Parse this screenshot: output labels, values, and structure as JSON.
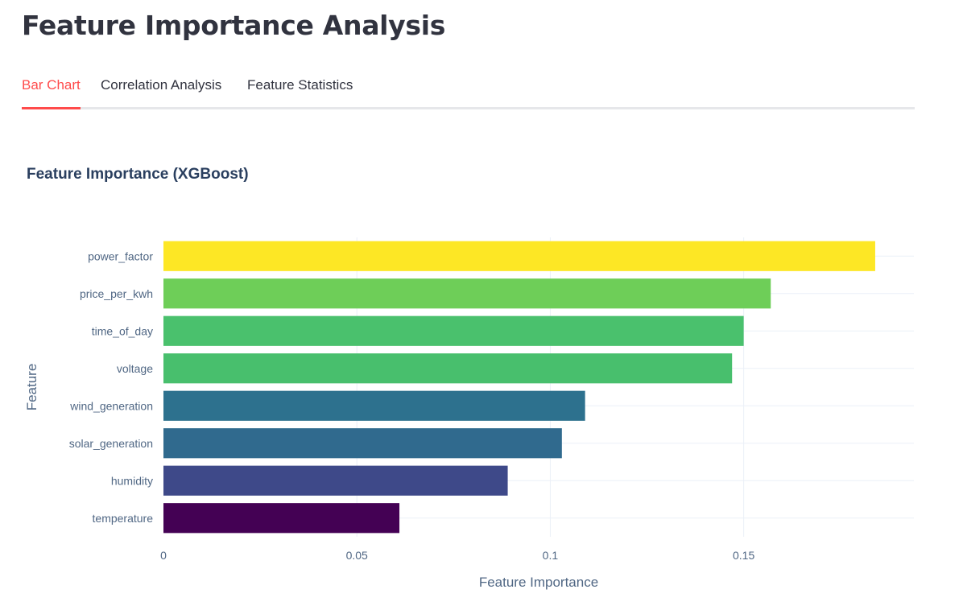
{
  "page_title": "Feature Importance Analysis",
  "tabs": [
    {
      "label": "Bar Chart",
      "active": true
    },
    {
      "label": "Correlation Analysis",
      "active": false
    },
    {
      "label": "Feature Statistics",
      "active": false
    }
  ],
  "colors": {
    "accent": "#ff4b4b",
    "tab_border": "#e6e7ea"
  },
  "chart_data": {
    "type": "bar",
    "orientation": "horizontal",
    "title": "Feature Importance (XGBoost)",
    "xlabel": "Feature Importance",
    "ylabel": "Feature",
    "xlim": [
      0,
      0.194
    ],
    "xticks": [
      0,
      0.05,
      0.1,
      0.15
    ],
    "xtick_labels": [
      "0",
      "0.05",
      "0.1",
      "0.15"
    ],
    "grid": true,
    "categories": [
      "power_factor",
      "price_per_kwh",
      "time_of_day",
      "voltage",
      "wind_generation",
      "solar_generation",
      "humidity",
      "temperature"
    ],
    "values": [
      0.184,
      0.157,
      0.15,
      0.147,
      0.109,
      0.103,
      0.089,
      0.061
    ],
    "bar_colors": [
      "#fde725",
      "#6ece58",
      "#4ac16d",
      "#48bf6d",
      "#2d718e",
      "#306a8e",
      "#3e4989",
      "#440154"
    ]
  }
}
